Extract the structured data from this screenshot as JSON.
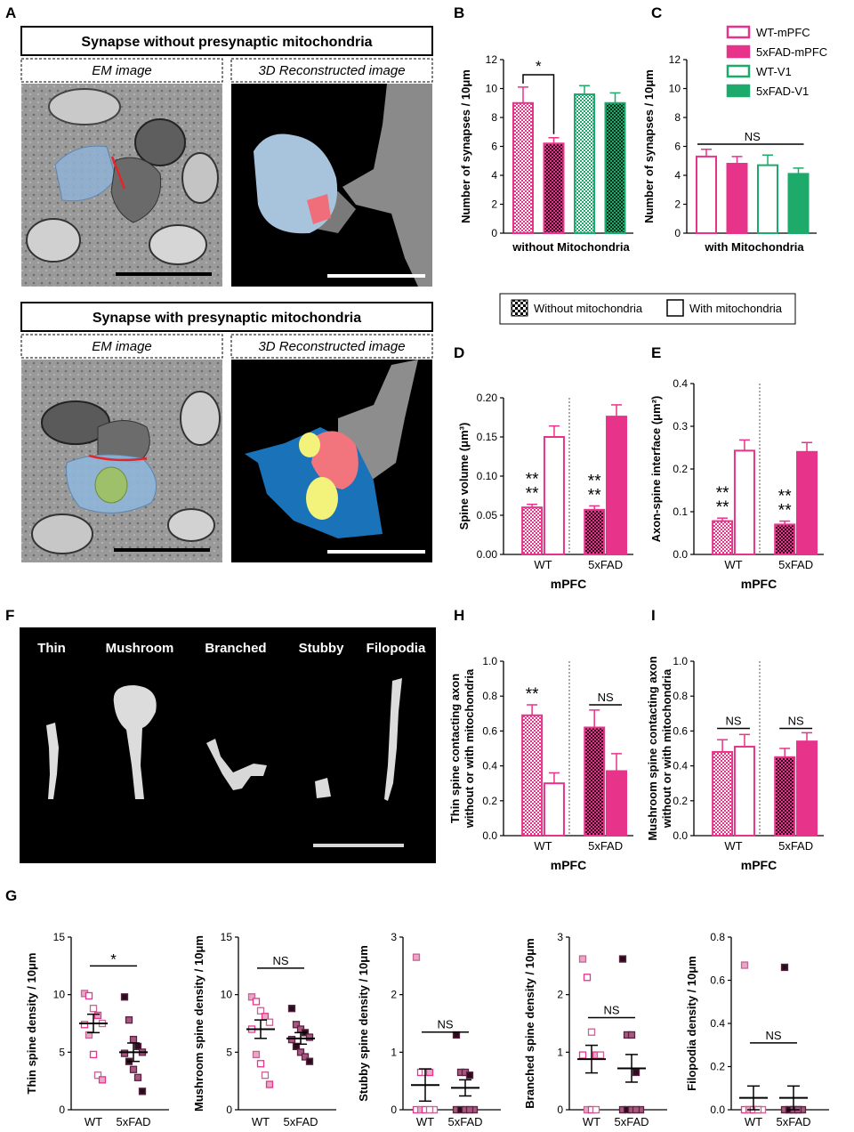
{
  "panel_letters": {
    "A": "A",
    "B": "B",
    "C": "C",
    "D": "D",
    "E": "E",
    "F": "F",
    "G": "G",
    "H": "H",
    "I": "I"
  },
  "panel_A": {
    "title_without": "Synapse without presynaptic mitochondria",
    "title_with": "Synapse with presynaptic mitochondria",
    "em_label": "EM image",
    "recon_label": "3D Reconstructed image"
  },
  "legend": {
    "series": [
      {
        "name": "WT-mPFC",
        "color": "#e8338a",
        "filled": false
      },
      {
        "name": "5xFAD-mPFC",
        "color": "#e8338a",
        "filled": true
      },
      {
        "name": "WT-V1",
        "color": "#1daa6a",
        "filled": false
      },
      {
        "name": "5xFAD-V1",
        "color": "#1daa6a",
        "filled": true
      }
    ],
    "pattern_without": "Without mitochondria",
    "pattern_with": "With mitochondria"
  },
  "spine_types": [
    "Thin",
    "Mushroom",
    "Branched",
    "Stubby",
    "Filopodia"
  ],
  "colors": {
    "pink": "#e8338a",
    "green": "#1daa6a",
    "black": "#000000",
    "em_bg": "#8c8c8c",
    "recon_bg": "#000000"
  },
  "chart_data": [
    {
      "id": "B",
      "type": "bar",
      "ylabel": "Number of synapses / 10μm",
      "xlabel": "without Mitochondria",
      "ylim": [
        0,
        12
      ],
      "yticks": [
        "0",
        "2",
        "4",
        "6",
        "8",
        "10",
        "12"
      ],
      "categories": [
        "WT-mPFC",
        "5xFAD-mPFC",
        "WT-V1",
        "5xFAD-V1"
      ],
      "values": [
        9.0,
        6.2,
        9.6,
        9.0
      ],
      "errors": [
        1.1,
        0.4,
        0.6,
        0.7
      ],
      "annotation": "*"
    },
    {
      "id": "C",
      "type": "bar",
      "ylabel": "Number of synapses / 10μm",
      "xlabel": "with Mitochondria",
      "ylim": [
        0,
        12
      ],
      "yticks": [
        "0",
        "2",
        "4",
        "6",
        "8",
        "10",
        "12"
      ],
      "categories": [
        "WT-mPFC",
        "5xFAD-mPFC",
        "WT-V1",
        "5xFAD-V1"
      ],
      "values": [
        5.3,
        4.8,
        4.7,
        4.1
      ],
      "errors": [
        0.5,
        0.5,
        0.7,
        0.4
      ],
      "annotation": "NS"
    },
    {
      "id": "D",
      "type": "bar",
      "ylabel": "Spine volume (μm³)",
      "xlabel": "mPFC",
      "groups": [
        "WT",
        "5xFAD"
      ],
      "ylim": [
        0,
        0.2
      ],
      "yticks": [
        "0.00",
        "0.05",
        "0.10",
        "0.15",
        "0.20"
      ],
      "series": [
        {
          "name": "Without mitochondria",
          "values": [
            0.06,
            0.057
          ],
          "errors": [
            0.004,
            0.005
          ]
        },
        {
          "name": "With mitochondria",
          "values": [
            0.15,
            0.176
          ],
          "errors": [
            0.014,
            0.015
          ]
        }
      ],
      "annotations": [
        "**",
        "**",
        "**",
        "**"
      ]
    },
    {
      "id": "E",
      "type": "bar",
      "ylabel": "Axon-spine interface (μm²)",
      "xlabel": "mPFC",
      "groups": [
        "WT",
        "5xFAD"
      ],
      "ylim": [
        0,
        0.4
      ],
      "yticks": [
        "0.0",
        "0.1",
        "0.2",
        "0.3",
        "0.4"
      ],
      "series": [
        {
          "name": "Without mitochondria",
          "values": [
            0.078,
            0.07
          ],
          "errors": [
            0.007,
            0.008
          ]
        },
        {
          "name": "With mitochondria",
          "values": [
            0.243,
            0.24
          ],
          "errors": [
            0.025,
            0.022
          ]
        }
      ],
      "annotations": [
        "**",
        "**",
        "**",
        "**"
      ]
    },
    {
      "id": "H",
      "type": "bar",
      "ylabel_line1": "Thin spine contacting axon",
      "ylabel_line2": "without or with mitochondria",
      "xlabel": "mPFC",
      "groups": [
        "WT",
        "5xFAD"
      ],
      "ylim": [
        0,
        1.0
      ],
      "yticks": [
        "0.0",
        "0.2",
        "0.4",
        "0.6",
        "0.8",
        "1.0"
      ],
      "series": [
        {
          "name": "Without mitochondria",
          "values": [
            0.69,
            0.62
          ],
          "errors": [
            0.06,
            0.1
          ]
        },
        {
          "name": "With mitochondria",
          "values": [
            0.3,
            0.37
          ],
          "errors": [
            0.06,
            0.1
          ]
        }
      ],
      "annotations": [
        "**",
        "NS"
      ]
    },
    {
      "id": "I",
      "type": "bar",
      "ylabel_line1": "Mushroom spine contacting axon",
      "ylabel_line2": "without or with mitochondria",
      "xlabel": "mPFC",
      "groups": [
        "WT",
        "5xFAD"
      ],
      "ylim": [
        0,
        1.0
      ],
      "yticks": [
        "0.0",
        "0.2",
        "0.4",
        "0.6",
        "0.8",
        "1.0"
      ],
      "series": [
        {
          "name": "Without mitochondria",
          "values": [
            0.48,
            0.45
          ],
          "errors": [
            0.07,
            0.05
          ]
        },
        {
          "name": "With mitochondria",
          "values": [
            0.51,
            0.54
          ],
          "errors": [
            0.07,
            0.05
          ]
        }
      ],
      "annotations": [
        "NS",
        "NS"
      ]
    },
    {
      "id": "G1",
      "type": "scatter",
      "ylabel": "Thin spine density / 10μm",
      "groups": [
        "WT",
        "5xFAD"
      ],
      "ylim": [
        0,
        15
      ],
      "yticks": [
        "0",
        "5",
        "10",
        "15"
      ],
      "points": [
        [
          10.1,
          9.9,
          8.8,
          8.2,
          7.5,
          7.4,
          6.5,
          4.8,
          3.0,
          2.6
        ],
        [
          9.8,
          7.8,
          6.1,
          5.5,
          5.0,
          4.9,
          4.2,
          3.5,
          2.8,
          1.6
        ]
      ],
      "mean": [
        7.5,
        5.0
      ],
      "sem": [
        0.8,
        0.8
      ],
      "annotation": "*"
    },
    {
      "id": "G2",
      "type": "scatter",
      "ylabel": "Mushroom spine density / 10μm",
      "groups": [
        "WT",
        "5xFAD"
      ],
      "ylim": [
        0,
        15
      ],
      "yticks": [
        "0",
        "5",
        "10",
        "15"
      ],
      "points": [
        [
          9.8,
          9.4,
          8.6,
          8.1,
          7.6,
          7.0,
          4.8,
          4.0,
          3.0,
          2.2
        ],
        [
          8.8,
          7.4,
          7.0,
          6.7,
          6.3,
          6.1,
          5.5,
          5.0,
          4.6,
          4.2
        ]
      ],
      "mean": [
        7.0,
        6.2
      ],
      "sem": [
        0.8,
        0.5
      ],
      "annotation": "NS"
    },
    {
      "id": "G3",
      "type": "scatter",
      "ylabel": "Stubby spine density / 10μm",
      "groups": [
        "WT",
        "5xFAD"
      ],
      "ylim": [
        0,
        3
      ],
      "yticks": [
        "0",
        "1",
        "2",
        "3"
      ],
      "points": [
        [
          2.65,
          0.65,
          0.65,
          0.65,
          0,
          0,
          0,
          0,
          0
        ],
        [
          1.3,
          0.65,
          0.65,
          0.6,
          0,
          0,
          0,
          0,
          0
        ]
      ],
      "mean": [
        0.43,
        0.38
      ],
      "sem": [
        0.28,
        0.14
      ],
      "annotation": "NS"
    },
    {
      "id": "G4",
      "type": "scatter",
      "ylabel": "Branched spine density / 10μm",
      "groups": [
        "WT",
        "5xFAD"
      ],
      "ylim": [
        0,
        3
      ],
      "yticks": [
        "0",
        "1",
        "2",
        "3"
      ],
      "points": [
        [
          2.62,
          2.3,
          1.35,
          0.95,
          0.95,
          0.95,
          0,
          0,
          0
        ],
        [
          2.62,
          1.3,
          1.3,
          0.65,
          0,
          0,
          0,
          0,
          0
        ]
      ],
      "mean": [
        0.88,
        0.72
      ],
      "sem": [
        0.24,
        0.24
      ],
      "annotation": "NS"
    },
    {
      "id": "G5",
      "type": "scatter",
      "ylabel": "Filopodia density / 10μm",
      "groups": [
        "WT",
        "5xFAD"
      ],
      "ylim": [
        0,
        0.8
      ],
      "yticks": [
        "0.0",
        "0.2",
        "0.4",
        "0.6",
        "0.8"
      ],
      "points": [
        [
          0.67,
          0,
          0,
          0,
          0,
          0,
          0,
          0,
          0
        ],
        [
          0.66,
          0,
          0,
          0,
          0,
          0,
          0,
          0,
          0
        ]
      ],
      "mean": [
        0.055,
        0.055
      ],
      "sem": [
        0.055,
        0.055
      ],
      "annotation": "NS"
    }
  ]
}
